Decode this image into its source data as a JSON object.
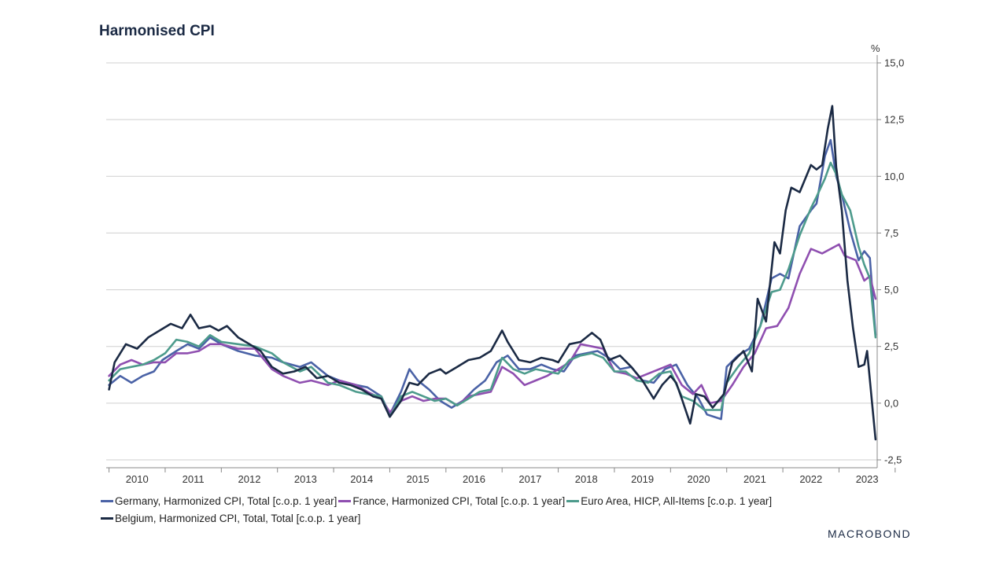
{
  "chart_data": {
    "type": "line",
    "title": "Harmonised CPI",
    "yunit": "%",
    "ylim": [
      -2.5,
      15.0
    ],
    "yticks": [
      "15,0",
      "12,5",
      "10,0",
      "7,5",
      "5,0",
      "2,5",
      "0,0",
      "-2,5"
    ],
    "ytick_values": [
      15.0,
      12.5,
      10.0,
      7.5,
      5.0,
      2.5,
      0.0,
      -2.5
    ],
    "xlim": [
      2009.95,
      2023.68
    ],
    "xticks": [
      "2010",
      "2011",
      "2012",
      "2013",
      "2014",
      "2015",
      "2016",
      "2017",
      "2018",
      "2019",
      "2020",
      "2021",
      "2022",
      "2023"
    ],
    "grid": true,
    "legend_position": "bottom",
    "series": [
      {
        "name": "Germany, Harmonized CPI, Total [c.o.p. 1 year]",
        "color": "#4a62a6",
        "points": [
          [
            2010.0,
            0.8
          ],
          [
            2010.2,
            1.2
          ],
          [
            2010.4,
            0.9
          ],
          [
            2010.6,
            1.2
          ],
          [
            2010.8,
            1.4
          ],
          [
            2010.95,
            1.9
          ],
          [
            2011.2,
            2.3
          ],
          [
            2011.4,
            2.6
          ],
          [
            2011.6,
            2.4
          ],
          [
            2011.8,
            2.9
          ],
          [
            2012.0,
            2.6
          ],
          [
            2012.3,
            2.3
          ],
          [
            2012.6,
            2.1
          ],
          [
            2012.9,
            2.0
          ],
          [
            2013.1,
            1.8
          ],
          [
            2013.4,
            1.6
          ],
          [
            2013.6,
            1.8
          ],
          [
            2013.9,
            1.2
          ],
          [
            2014.1,
            1.0
          ],
          [
            2014.4,
            0.8
          ],
          [
            2014.6,
            0.7
          ],
          [
            2014.85,
            0.3
          ],
          [
            2015.0,
            -0.5
          ],
          [
            2015.2,
            0.5
          ],
          [
            2015.35,
            1.5
          ],
          [
            2015.5,
            1.0
          ],
          [
            2015.7,
            0.6
          ],
          [
            2015.9,
            0.1
          ],
          [
            2016.1,
            -0.2
          ],
          [
            2016.3,
            0.1
          ],
          [
            2016.5,
            0.6
          ],
          [
            2016.7,
            1.0
          ],
          [
            2016.9,
            1.8
          ],
          [
            2017.1,
            2.1
          ],
          [
            2017.3,
            1.5
          ],
          [
            2017.5,
            1.5
          ],
          [
            2017.7,
            1.7
          ],
          [
            2017.9,
            1.5
          ],
          [
            2018.1,
            1.4
          ],
          [
            2018.3,
            2.1
          ],
          [
            2018.5,
            2.2
          ],
          [
            2018.7,
            2.3
          ],
          [
            2018.9,
            2.0
          ],
          [
            2019.1,
            1.5
          ],
          [
            2019.3,
            1.6
          ],
          [
            2019.5,
            1.0
          ],
          [
            2019.7,
            0.9
          ],
          [
            2019.9,
            1.5
          ],
          [
            2020.1,
            1.7
          ],
          [
            2020.3,
            0.8
          ],
          [
            2020.5,
            0.2
          ],
          [
            2020.65,
            -0.5
          ],
          [
            2020.9,
            -0.7
          ],
          [
            2021.0,
            1.6
          ],
          [
            2021.2,
            2.1
          ],
          [
            2021.4,
            2.4
          ],
          [
            2021.6,
            3.4
          ],
          [
            2021.8,
            5.5
          ],
          [
            2021.95,
            5.7
          ],
          [
            2022.1,
            5.5
          ],
          [
            2022.3,
            7.8
          ],
          [
            2022.5,
            8.5
          ],
          [
            2022.6,
            8.8
          ],
          [
            2022.75,
            10.9
          ],
          [
            2022.85,
            11.6
          ],
          [
            2022.95,
            10.0
          ],
          [
            2023.05,
            9.2
          ],
          [
            2023.2,
            7.6
          ],
          [
            2023.35,
            6.3
          ],
          [
            2023.45,
            6.7
          ],
          [
            2023.55,
            6.4
          ],
          [
            2023.65,
            3.0
          ]
        ]
      },
      {
        "name": "France, Harmonized CPI, Total [c.o.p. 1 year]",
        "color": "#8f4fb0",
        "points": [
          [
            2010.0,
            1.2
          ],
          [
            2010.2,
            1.7
          ],
          [
            2010.4,
            1.9
          ],
          [
            2010.6,
            1.7
          ],
          [
            2010.8,
            1.8
          ],
          [
            2011.0,
            1.8
          ],
          [
            2011.2,
            2.2
          ],
          [
            2011.4,
            2.2
          ],
          [
            2011.6,
            2.3
          ],
          [
            2011.8,
            2.6
          ],
          [
            2012.0,
            2.6
          ],
          [
            2012.3,
            2.4
          ],
          [
            2012.6,
            2.4
          ],
          [
            2012.9,
            1.5
          ],
          [
            2013.1,
            1.2
          ],
          [
            2013.4,
            0.9
          ],
          [
            2013.6,
            1.0
          ],
          [
            2013.9,
            0.8
          ],
          [
            2014.1,
            1.0
          ],
          [
            2014.4,
            0.8
          ],
          [
            2014.6,
            0.5
          ],
          [
            2014.85,
            0.2
          ],
          [
            2015.0,
            -0.4
          ],
          [
            2015.2,
            0.1
          ],
          [
            2015.4,
            0.3
          ],
          [
            2015.6,
            0.1
          ],
          [
            2015.8,
            0.2
          ],
          [
            2016.0,
            0.2
          ],
          [
            2016.2,
            -0.1
          ],
          [
            2016.4,
            0.3
          ],
          [
            2016.6,
            0.4
          ],
          [
            2016.8,
            0.5
          ],
          [
            2017.0,
            1.6
          ],
          [
            2017.2,
            1.3
          ],
          [
            2017.4,
            0.8
          ],
          [
            2017.6,
            1.0
          ],
          [
            2017.8,
            1.2
          ],
          [
            2018.0,
            1.5
          ],
          [
            2018.2,
            1.8
          ],
          [
            2018.4,
            2.6
          ],
          [
            2018.6,
            2.5
          ],
          [
            2018.8,
            2.4
          ],
          [
            2019.0,
            1.4
          ],
          [
            2019.2,
            1.3
          ],
          [
            2019.4,
            1.1
          ],
          [
            2019.6,
            1.3
          ],
          [
            2019.8,
            1.5
          ],
          [
            2020.0,
            1.7
          ],
          [
            2020.2,
            0.8
          ],
          [
            2020.4,
            0.4
          ],
          [
            2020.55,
            0.8
          ],
          [
            2020.7,
            0.0
          ],
          [
            2020.9,
            0.1
          ],
          [
            2021.1,
            0.8
          ],
          [
            2021.3,
            1.6
          ],
          [
            2021.5,
            2.2
          ],
          [
            2021.7,
            3.3
          ],
          [
            2021.9,
            3.4
          ],
          [
            2022.1,
            4.2
          ],
          [
            2022.3,
            5.7
          ],
          [
            2022.5,
            6.8
          ],
          [
            2022.7,
            6.6
          ],
          [
            2022.85,
            6.8
          ],
          [
            2023.0,
            7.0
          ],
          [
            2023.1,
            6.5
          ],
          [
            2023.3,
            6.3
          ],
          [
            2023.45,
            5.4
          ],
          [
            2023.55,
            5.6
          ],
          [
            2023.65,
            4.6
          ]
        ]
      },
      {
        "name": "Euro Area, HICP, All-Items [c.o.p. 1 year]",
        "color": "#4d9b8c",
        "points": [
          [
            2010.0,
            1.0
          ],
          [
            2010.2,
            1.5
          ],
          [
            2010.4,
            1.6
          ],
          [
            2010.6,
            1.7
          ],
          [
            2010.8,
            1.9
          ],
          [
            2011.0,
            2.2
          ],
          [
            2011.2,
            2.8
          ],
          [
            2011.4,
            2.7
          ],
          [
            2011.6,
            2.5
          ],
          [
            2011.8,
            3.0
          ],
          [
            2012.0,
            2.7
          ],
          [
            2012.3,
            2.6
          ],
          [
            2012.6,
            2.5
          ],
          [
            2012.9,
            2.2
          ],
          [
            2013.1,
            1.8
          ],
          [
            2013.4,
            1.4
          ],
          [
            2013.6,
            1.6
          ],
          [
            2013.9,
            0.9
          ],
          [
            2014.1,
            0.8
          ],
          [
            2014.4,
            0.5
          ],
          [
            2014.6,
            0.4
          ],
          [
            2014.85,
            0.3
          ],
          [
            2015.0,
            -0.6
          ],
          [
            2015.2,
            0.3
          ],
          [
            2015.4,
            0.5
          ],
          [
            2015.6,
            0.3
          ],
          [
            2015.8,
            0.1
          ],
          [
            2016.0,
            0.2
          ],
          [
            2016.2,
            -0.1
          ],
          [
            2016.4,
            0.2
          ],
          [
            2016.6,
            0.5
          ],
          [
            2016.8,
            0.6
          ],
          [
            2017.0,
            2.0
          ],
          [
            2017.2,
            1.5
          ],
          [
            2017.4,
            1.3
          ],
          [
            2017.6,
            1.5
          ],
          [
            2017.8,
            1.4
          ],
          [
            2018.0,
            1.3
          ],
          [
            2018.2,
            1.9
          ],
          [
            2018.4,
            2.1
          ],
          [
            2018.6,
            2.2
          ],
          [
            2018.8,
            2.0
          ],
          [
            2019.0,
            1.4
          ],
          [
            2019.2,
            1.4
          ],
          [
            2019.4,
            1.0
          ],
          [
            2019.6,
            0.9
          ],
          [
            2019.8,
            1.3
          ],
          [
            2020.0,
            1.4
          ],
          [
            2020.2,
            0.3
          ],
          [
            2020.4,
            0.1
          ],
          [
            2020.6,
            -0.3
          ],
          [
            2020.9,
            -0.3
          ],
          [
            2021.0,
            0.9
          ],
          [
            2021.2,
            1.6
          ],
          [
            2021.4,
            2.2
          ],
          [
            2021.6,
            3.4
          ],
          [
            2021.8,
            4.9
          ],
          [
            2021.95,
            5.0
          ],
          [
            2022.1,
            5.9
          ],
          [
            2022.3,
            7.4
          ],
          [
            2022.5,
            8.6
          ],
          [
            2022.6,
            9.1
          ],
          [
            2022.75,
            9.9
          ],
          [
            2022.85,
            10.6
          ],
          [
            2022.95,
            10.1
          ],
          [
            2023.05,
            9.2
          ],
          [
            2023.2,
            8.5
          ],
          [
            2023.35,
            6.9
          ],
          [
            2023.45,
            6.1
          ],
          [
            2023.55,
            5.5
          ],
          [
            2023.65,
            2.9
          ]
        ]
      },
      {
        "name": "Belgium, Harmonized CPI, Total, Total [c.o.p. 1 year]",
        "color": "#1b2a44",
        "points": [
          [
            2010.0,
            0.6
          ],
          [
            2010.1,
            1.8
          ],
          [
            2010.3,
            2.6
          ],
          [
            2010.5,
            2.4
          ],
          [
            2010.7,
            2.9
          ],
          [
            2010.9,
            3.2
          ],
          [
            2011.1,
            3.5
          ],
          [
            2011.3,
            3.3
          ],
          [
            2011.45,
            3.9
          ],
          [
            2011.6,
            3.3
          ],
          [
            2011.8,
            3.4
          ],
          [
            2011.95,
            3.2
          ],
          [
            2012.1,
            3.4
          ],
          [
            2012.3,
            2.9
          ],
          [
            2012.5,
            2.6
          ],
          [
            2012.7,
            2.3
          ],
          [
            2012.9,
            1.6
          ],
          [
            2013.1,
            1.3
          ],
          [
            2013.3,
            1.4
          ],
          [
            2013.5,
            1.6
          ],
          [
            2013.7,
            1.1
          ],
          [
            2013.9,
            1.2
          ],
          [
            2014.1,
            0.9
          ],
          [
            2014.3,
            0.8
          ],
          [
            2014.5,
            0.6
          ],
          [
            2014.7,
            0.3
          ],
          [
            2014.85,
            0.2
          ],
          [
            2015.0,
            -0.6
          ],
          [
            2015.2,
            0.1
          ],
          [
            2015.35,
            0.9
          ],
          [
            2015.5,
            0.8
          ],
          [
            2015.7,
            1.3
          ],
          [
            2015.9,
            1.5
          ],
          [
            2016.0,
            1.3
          ],
          [
            2016.2,
            1.6
          ],
          [
            2016.4,
            1.9
          ],
          [
            2016.6,
            2.0
          ],
          [
            2016.8,
            2.3
          ],
          [
            2017.0,
            3.2
          ],
          [
            2017.1,
            2.7
          ],
          [
            2017.3,
            1.9
          ],
          [
            2017.5,
            1.8
          ],
          [
            2017.7,
            2.0
          ],
          [
            2017.9,
            1.9
          ],
          [
            2018.0,
            1.8
          ],
          [
            2018.2,
            2.6
          ],
          [
            2018.4,
            2.7
          ],
          [
            2018.6,
            3.1
          ],
          [
            2018.75,
            2.8
          ],
          [
            2018.9,
            1.9
          ],
          [
            2019.1,
            2.1
          ],
          [
            2019.3,
            1.6
          ],
          [
            2019.5,
            1.0
          ],
          [
            2019.7,
            0.2
          ],
          [
            2019.85,
            0.8
          ],
          [
            2020.0,
            1.2
          ],
          [
            2020.1,
            0.9
          ],
          [
            2020.2,
            0.2
          ],
          [
            2020.35,
            -0.9
          ],
          [
            2020.45,
            0.4
          ],
          [
            2020.6,
            0.3
          ],
          [
            2020.75,
            -0.2
          ],
          [
            2020.95,
            0.4
          ],
          [
            2021.1,
            1.8
          ],
          [
            2021.3,
            2.3
          ],
          [
            2021.45,
            1.4
          ],
          [
            2021.55,
            4.6
          ],
          [
            2021.7,
            3.6
          ],
          [
            2021.85,
            7.1
          ],
          [
            2021.95,
            6.6
          ],
          [
            2022.05,
            8.5
          ],
          [
            2022.15,
            9.5
          ],
          [
            2022.3,
            9.3
          ],
          [
            2022.5,
            10.5
          ],
          [
            2022.6,
            10.3
          ],
          [
            2022.7,
            10.5
          ],
          [
            2022.8,
            12.1
          ],
          [
            2022.88,
            13.1
          ],
          [
            2022.95,
            10.4
          ],
          [
            2023.05,
            8.5
          ],
          [
            2023.15,
            5.4
          ],
          [
            2023.25,
            3.3
          ],
          [
            2023.35,
            1.6
          ],
          [
            2023.45,
            1.7
          ],
          [
            2023.5,
            2.3
          ],
          [
            2023.65,
            -1.6
          ]
        ]
      }
    ]
  },
  "footer": {
    "logo_text": "MACROBOND"
  }
}
